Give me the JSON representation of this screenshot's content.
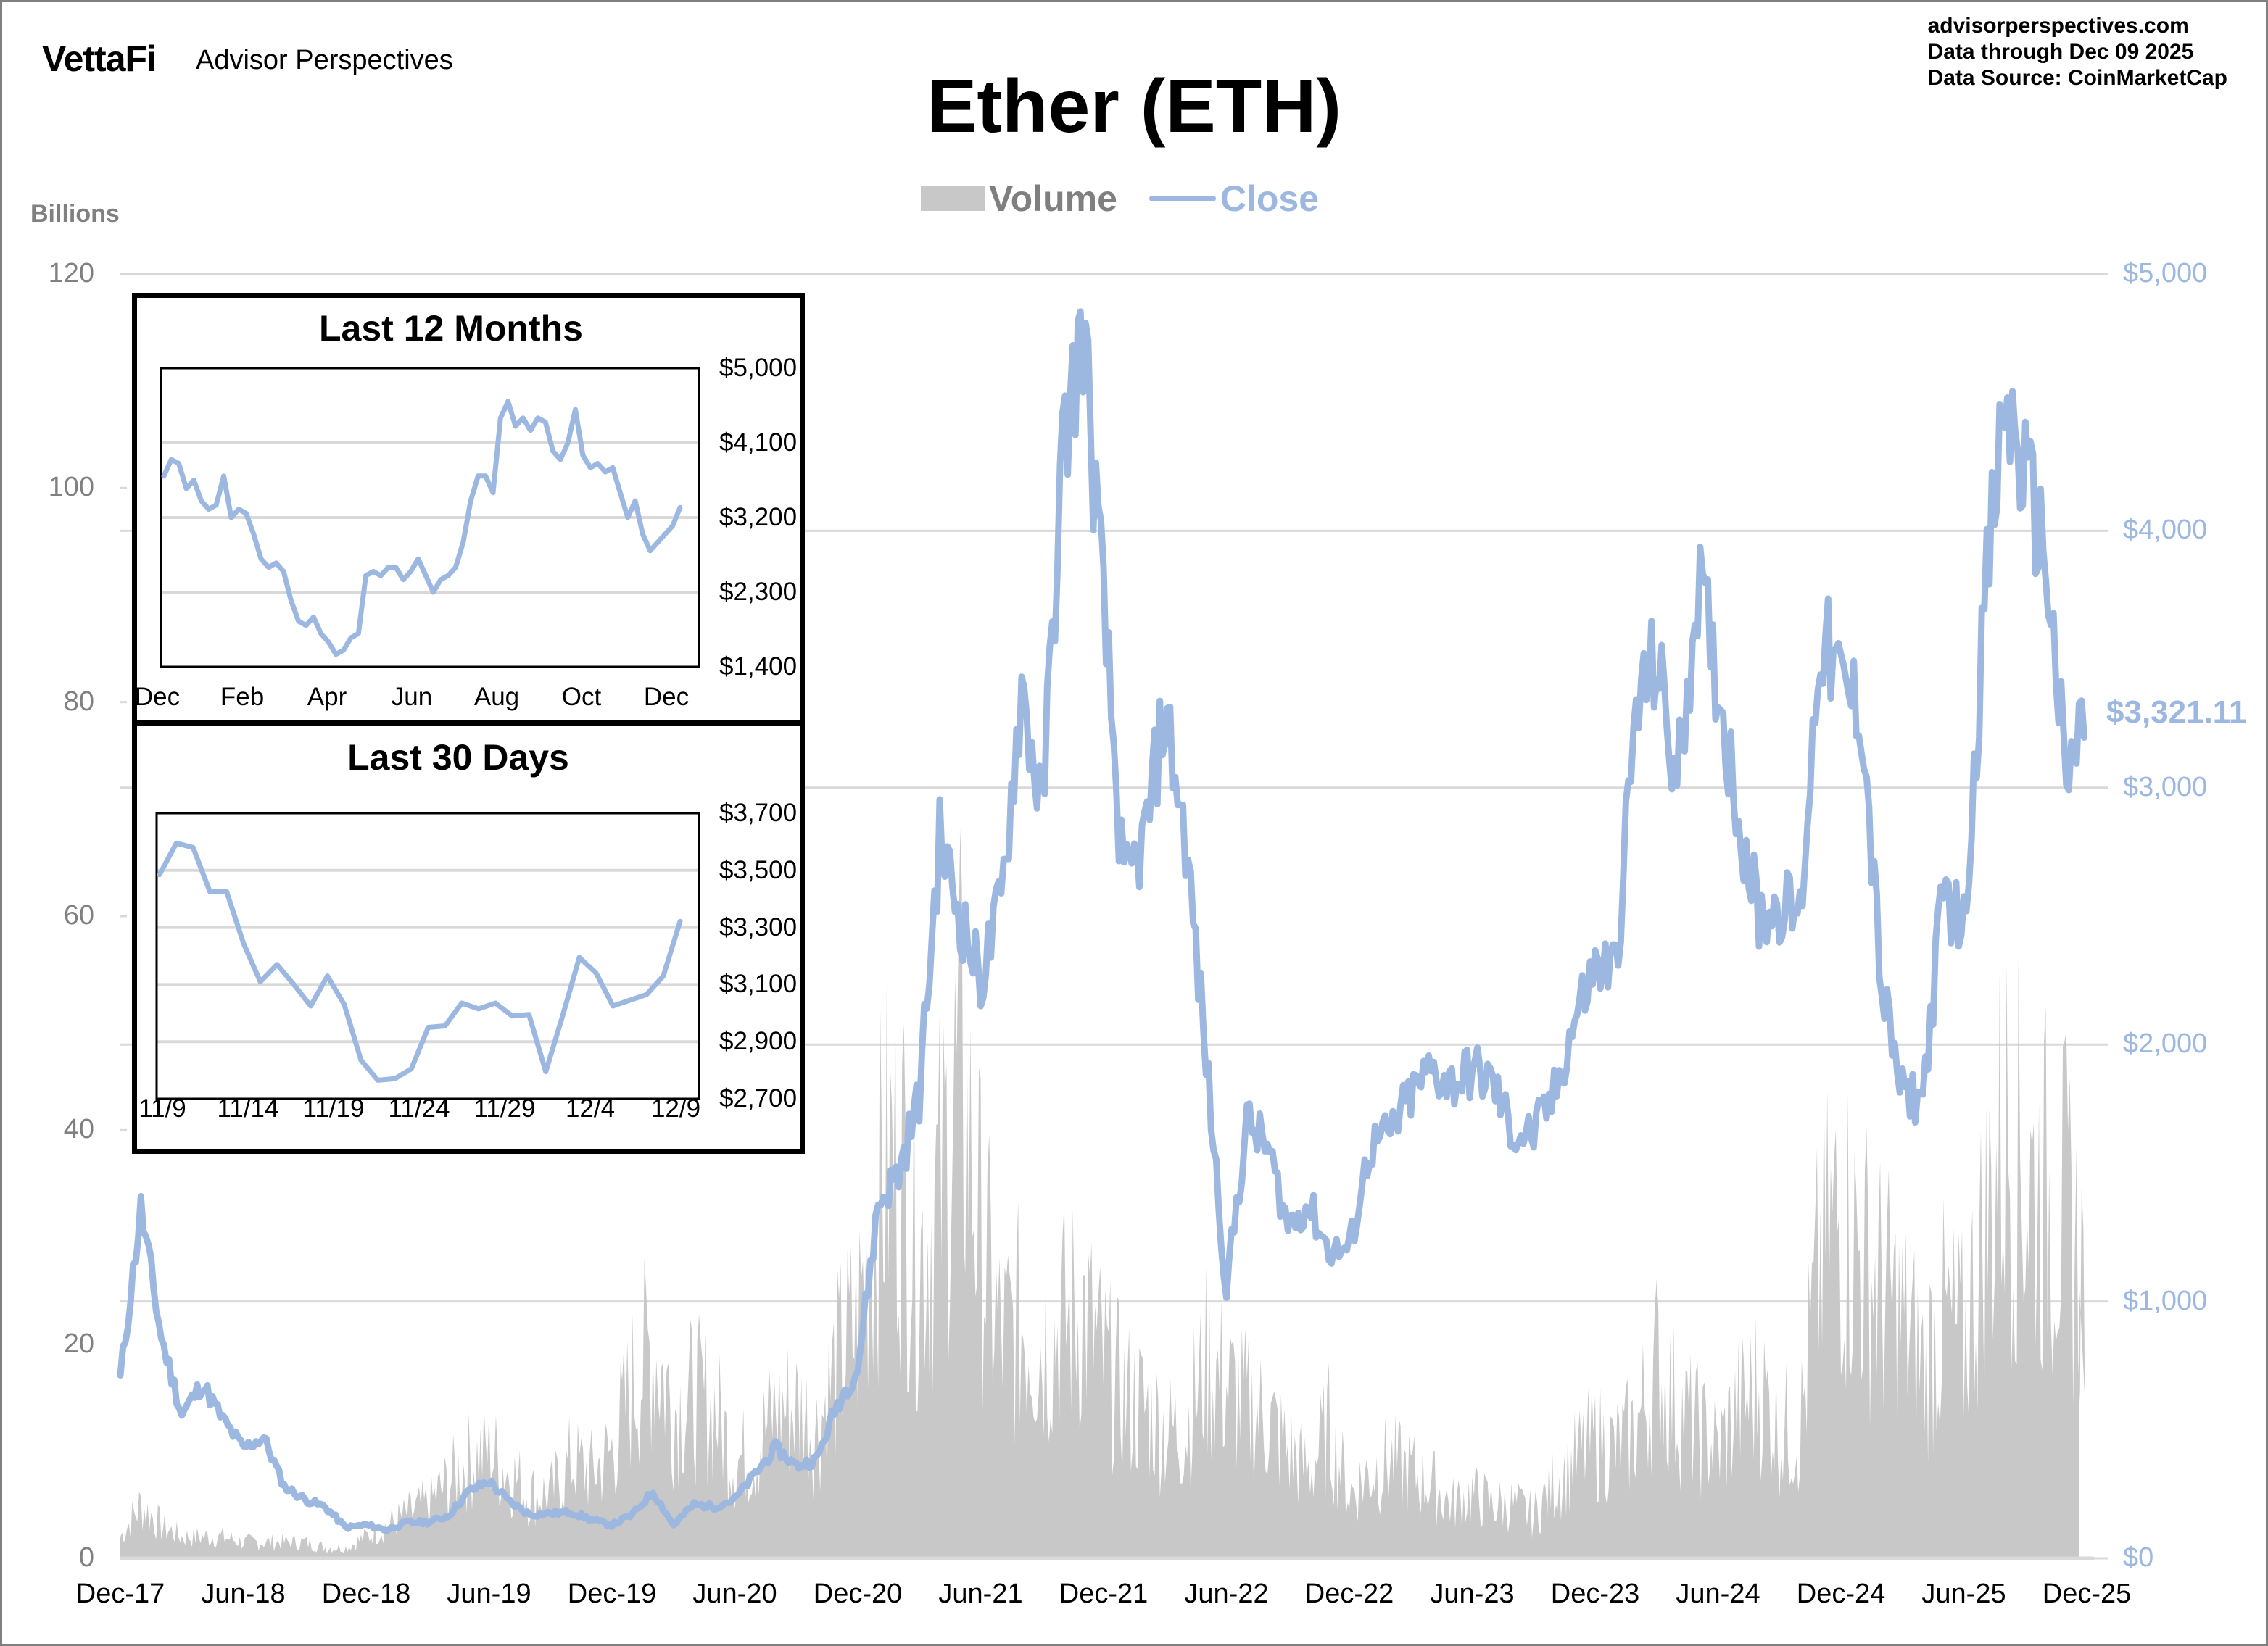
{
  "header": {
    "brand": "VettaFi",
    "brand_sub": "Advisor Perspectives",
    "site": "advisorperspectives.com",
    "data_through": "Data through  Dec 09 2025",
    "data_source": "Data Source:  CoinMarketCap"
  },
  "colors": {
    "close": "#9db8e0",
    "volume": "#c8c8c8",
    "gridline": "#d9d9d9",
    "axis_left": "#808080",
    "inset_border": "#000000"
  },
  "chart_data": [
    {
      "type": "area+line",
      "title": "Ether (ETH)",
      "legend": [
        "Volume",
        "Close"
      ],
      "legend_position": "top",
      "y_left_label": "Billions",
      "y_left_ticks": [
        "0",
        "20",
        "40",
        "60",
        "80",
        "100",
        "120"
      ],
      "y_left_range": [
        0,
        120
      ],
      "y_right_ticks": [
        "$0",
        "$1,000",
        "$2,000",
        "$3,000",
        "$4,000",
        "$5,000"
      ],
      "y_right_range": [
        0,
        5000
      ],
      "x_ticks": [
        "Dec-17",
        "Jun-18",
        "Dec-18",
        "Jun-19",
        "Dec-19",
        "Jun-20",
        "Dec-20",
        "Jun-21",
        "Dec-21",
        "Jun-22",
        "Dec-22",
        "Jun-23",
        "Dec-23",
        "Jun-24",
        "Dec-24",
        "Jun-25",
        "Dec-25"
      ],
      "grid": true,
      "last_close_label": "$3,321.11",
      "x_monthly": [
        "Dec-17",
        "Jan-18",
        "Feb-18",
        "Mar-18",
        "Apr-18",
        "May-18",
        "Jun-18",
        "Jul-18",
        "Aug-18",
        "Sep-18",
        "Oct-18",
        "Nov-18",
        "Dec-18",
        "Jan-19",
        "Feb-19",
        "Mar-19",
        "Apr-19",
        "May-19",
        "Jun-19",
        "Jul-19",
        "Aug-19",
        "Sep-19",
        "Oct-19",
        "Nov-19",
        "Dec-19",
        "Jan-20",
        "Feb-20",
        "Mar-20",
        "Apr-20",
        "May-20",
        "Jun-20",
        "Jul-20",
        "Aug-20",
        "Sep-20",
        "Oct-20",
        "Nov-20",
        "Dec-20",
        "Jan-21",
        "Feb-21",
        "Mar-21",
        "Apr-21",
        "May-21",
        "Jun-21",
        "Jul-21",
        "Aug-21",
        "Sep-21",
        "Oct-21",
        "Nov-21",
        "Dec-21",
        "Jan-22",
        "Feb-22",
        "Mar-22",
        "Apr-22",
        "May-22",
        "Jun-22",
        "Jul-22",
        "Aug-22",
        "Sep-22",
        "Oct-22",
        "Nov-22",
        "Dec-22",
        "Jan-23",
        "Feb-23",
        "Mar-23",
        "Apr-23",
        "May-23",
        "Jun-23",
        "Jul-23",
        "Aug-23",
        "Sep-23",
        "Oct-23",
        "Nov-23",
        "Dec-23",
        "Jan-24",
        "Feb-24",
        "Mar-24",
        "Apr-24",
        "May-24",
        "Jun-24",
        "Jul-24",
        "Aug-24",
        "Sep-24",
        "Oct-24",
        "Nov-24",
        "Dec-24",
        "Jan-25",
        "Feb-25",
        "Mar-25",
        "Apr-25",
        "May-25",
        "Jun-25",
        "Jul-25",
        "Aug-25",
        "Sep-25",
        "Oct-25",
        "Nov-25",
        "Dec-25"
      ],
      "series": [
        {
          "name": "Close",
          "axis": "right",
          "values": [
            700,
            1360,
            860,
            560,
            680,
            540,
            430,
            470,
            280,
            230,
            200,
            120,
            130,
            110,
            140,
            140,
            165,
            260,
            300,
            220,
            170,
            175,
            180,
            150,
            130,
            170,
            260,
            130,
            210,
            200,
            230,
            330,
            430,
            360,
            385,
            600,
            740,
            1380,
            1500,
            1800,
            2800,
            2500,
            2250,
            2550,
            3400,
            2900,
            4300,
            4800,
            3700,
            2600,
            2800,
            3300,
            2800,
            1950,
            1050,
            1700,
            1600,
            1300,
            1380,
            1200,
            1200,
            1600,
            1650,
            1800,
            1900,
            1850,
            1900,
            1850,
            1650,
            1650,
            1800,
            2100,
            2300,
            2300,
            3300,
            3500,
            3000,
            3800,
            3400,
            2900,
            2500,
            2550,
            2500,
            3600,
            3400,
            3300,
            2200,
            1800,
            1800,
            2600,
            2450,
            3700,
            4500,
            4200,
            3900,
            3000,
            3321
          ]
        },
        {
          "name": "Volume",
          "axis": "left",
          "unit": "Billions",
          "values": [
            2,
            5,
            3,
            2,
            2,
            2,
            1.5,
            1.5,
            1.5,
            1.5,
            1,
            1,
            2,
            3,
            4,
            5,
            7,
            9,
            10,
            8,
            6,
            6,
            9,
            8,
            10,
            16,
            20,
            14,
            15,
            14,
            9,
            10,
            14,
            14,
            12,
            18,
            22,
            35,
            38,
            28,
            34,
            45,
            30,
            20,
            22,
            20,
            22,
            23,
            18,
            15,
            14,
            12,
            12,
            18,
            16,
            14,
            13,
            10,
            8,
            12,
            6,
            8,
            9,
            8,
            7,
            5,
            6,
            5,
            5,
            4,
            7,
            9,
            11,
            10,
            12,
            18,
            14,
            12,
            10,
            14,
            16,
            12,
            12,
            28,
            32,
            28,
            25,
            22,
            18,
            22,
            20,
            30,
            40,
            35,
            34,
            32,
            25
          ]
        }
      ]
    },
    {
      "type": "line",
      "title": "Last 12 Months",
      "x_ticks": [
        "Dec",
        "Feb",
        "Apr",
        "Jun",
        "Aug",
        "Oct",
        "Dec"
      ],
      "y_ticks": [
        "$5,000",
        "$4,100",
        "$3,200",
        "$2,300",
        "$1,400"
      ],
      "y_range": [
        1400,
        5000
      ],
      "grid": true,
      "series": [
        {
          "name": "Close",
          "values": [
            3700,
            3900,
            3850,
            3550,
            3650,
            3400,
            3300,
            3350,
            3700,
            3200,
            3300,
            3250,
            3000,
            2700,
            2600,
            2650,
            2550,
            2200,
            1950,
            1900,
            2000,
            1800,
            1700,
            1550,
            1600,
            1750,
            1800,
            2500,
            2550,
            2500,
            2600,
            2600,
            2450,
            2550,
            2700,
            2500,
            2300,
            2450,
            2500,
            2600,
            2900,
            3400,
            3700,
            3700,
            3500,
            4400,
            4600,
            4300,
            4400,
            4250,
            4400,
            4350,
            4000,
            3900,
            4100,
            4500,
            3950,
            3800,
            3850,
            3750,
            3800,
            3500,
            3200,
            3400,
            3000,
            2800,
            2900,
            3000,
            3100,
            3320
          ]
        }
      ]
    },
    {
      "type": "line",
      "title": "Last 30 Days",
      "x_ticks": [
        "11/9",
        "11/14",
        "11/19",
        "11/24",
        "11/29",
        "12/4",
        "12/9"
      ],
      "y_ticks": [
        "$3,700",
        "$3,500",
        "$3,300",
        "$3,100",
        "$2,900",
        "$2,700"
      ],
      "y_range": [
        2700,
        3700
      ],
      "grid": true,
      "series": [
        {
          "name": "Close",
          "values": [
            3485,
            3595,
            3580,
            3425,
            3425,
            3245,
            3110,
            3170,
            3100,
            3025,
            3130,
            3030,
            2835,
            2765,
            2770,
            2805,
            2950,
            2955,
            3035,
            3015,
            3035,
            2990,
            2995,
            2795,
            2990,
            3195,
            3140,
            3025,
            3045,
            3065,
            3130,
            3321
          ]
        }
      ]
    }
  ],
  "axes": {
    "left_label": "Billions",
    "left_ticks": [
      "120",
      "100",
      "80",
      "60",
      "40",
      "20",
      "0"
    ],
    "right_ticks": [
      "$5,000",
      "$4,000",
      "$3,000",
      "$2,000",
      "$1,000",
      "$0"
    ],
    "x_ticks": [
      "Dec-17",
      "Jun-18",
      "Dec-18",
      "Jun-19",
      "Dec-19",
      "Jun-20",
      "Dec-20",
      "Jun-21",
      "Dec-21",
      "Jun-22",
      "Dec-22",
      "Jun-23",
      "Dec-23",
      "Jun-24",
      "Dec-24",
      "Jun-25",
      "Dec-25"
    ],
    "last_value": "$3,321.11"
  },
  "legend": {
    "volume": "Volume",
    "close": "Close"
  },
  "inset12": {
    "title": "Last 12 Months",
    "y_ticks": [
      "$5,000",
      "$4,100",
      "$3,200",
      "$2,300",
      "$1,400"
    ],
    "x_ticks": [
      "Dec",
      "Feb",
      "Apr",
      "Jun",
      "Aug",
      "Oct",
      "Dec"
    ]
  },
  "inset30": {
    "title": "Last 30 Days",
    "y_ticks": [
      "$3,700",
      "$3,500",
      "$3,300",
      "$3,100",
      "$2,900",
      "$2,700"
    ],
    "x_ticks": [
      "11/9",
      "11/14",
      "11/19",
      "11/24",
      "11/29",
      "12/4",
      "12/9"
    ]
  }
}
